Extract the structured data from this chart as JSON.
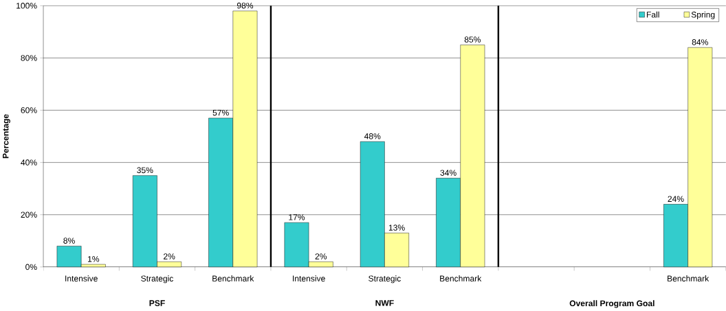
{
  "chart_data": {
    "type": "bar",
    "ylabel": "Percentage",
    "categories": [
      "Intensive",
      "Strategic",
      "Benchmark",
      "Intensive",
      "Strategic",
      "Benchmark",
      null,
      null,
      "Benchmark"
    ],
    "series": [
      {
        "name": "Fall",
        "color": "#33cccc",
        "values": [
          8,
          35,
          57,
          17,
          48,
          34,
          null,
          null,
          24
        ],
        "value_labels": [
          "8%",
          "35%",
          "57%",
          "17%",
          "48%",
          "34%",
          null,
          null,
          "24%"
        ]
      },
      {
        "name": "Spring",
        "color": "#ffff99",
        "values": [
          1,
          2,
          98,
          2,
          13,
          85,
          null,
          null,
          84
        ],
        "value_labels": [
          "1%",
          "2%",
          "98%",
          "2%",
          "13%",
          "85%",
          null,
          null,
          "84%"
        ]
      }
    ],
    "ylim": [
      0,
      100
    ],
    "yticks": [
      {
        "value": 0,
        "label": "0%"
      },
      {
        "value": 20,
        "label": "20%"
      },
      {
        "value": 40,
        "label": "40%"
      },
      {
        "value": 60,
        "label": "60%"
      },
      {
        "value": 80,
        "label": "80%"
      },
      {
        "value": 100,
        "label": "100%"
      }
    ],
    "grid": "y",
    "legend": "top right",
    "annotations": [
      "PSF",
      "NWF",
      "Overall Program Goal"
    ]
  }
}
